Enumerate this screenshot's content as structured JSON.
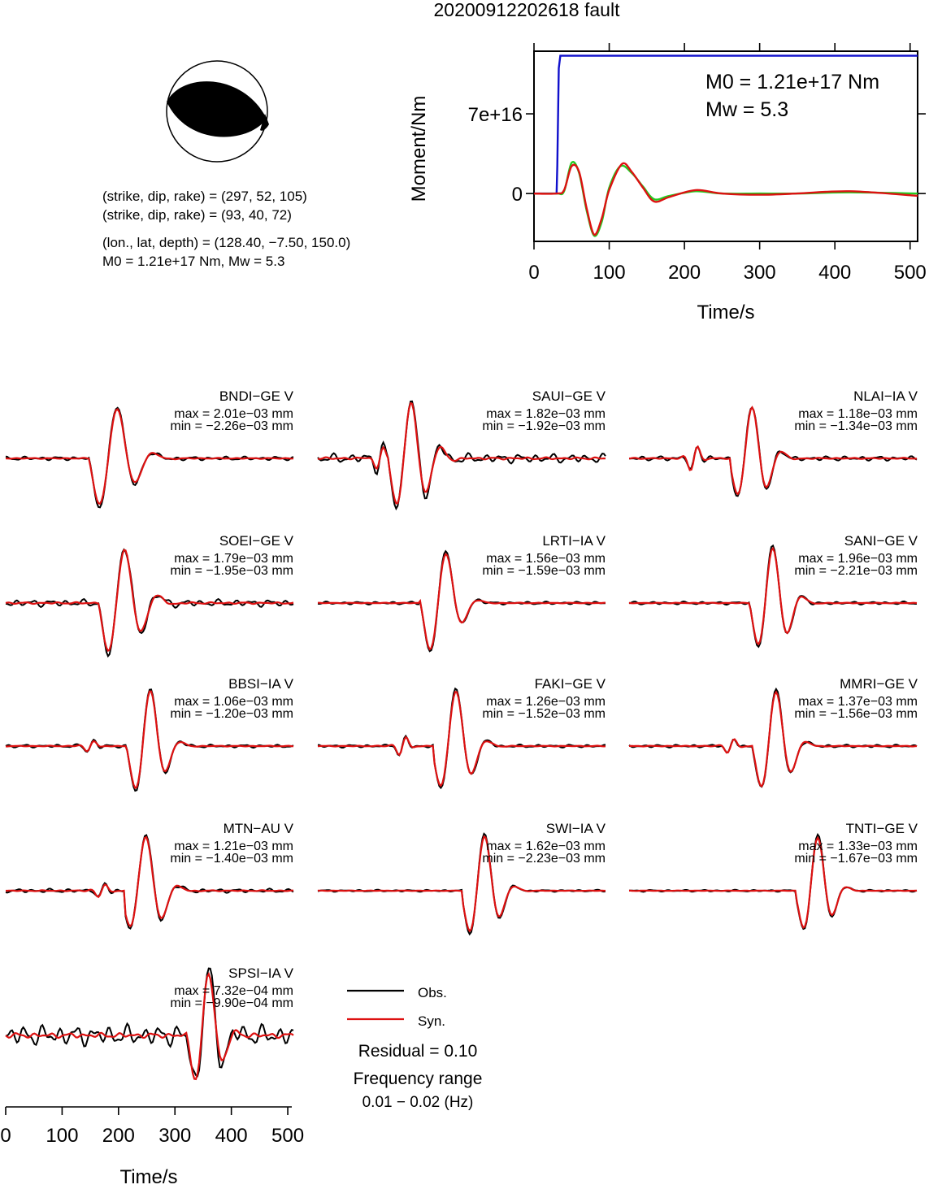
{
  "title": "20200912202618 fault",
  "mechanism": {
    "plane1": "(strike, dip, rake) = (297, 52, 105)",
    "plane2": "(strike, dip, rake) = (93, 40, 72)",
    "location": "(lon., lat, depth) = (128.40, −7.50, 150.0)",
    "moment_line": "M0 = 1.21e+17 Nm, Mw = 5.3"
  },
  "moment_plot": {
    "ylabel": "Moment/Nm",
    "xlabel": "Time/s",
    "m0_text": "M0 = 1.21e+17 Nm",
    "mw_text": "Mw = 5.3",
    "y_ticks": [
      "7e+16",
      "0"
    ],
    "x_ticks": [
      "0",
      "100",
      "200",
      "300",
      "400",
      "500"
    ]
  },
  "stations": [
    {
      "name": "BNDI−GE V",
      "max": "max = 2.01e−03 mm",
      "min": "min = −2.26e−03 mm"
    },
    {
      "name": "SAUI−GE V",
      "max": "max = 1.82e−03 mm",
      "min": "min = −1.92e−03 mm"
    },
    {
      "name": "NLAI−IA V",
      "max": "max = 1.18e−03 mm",
      "min": "min = −1.34e−03 mm"
    },
    {
      "name": "SOEI−GE V",
      "max": "max = 1.79e−03 mm",
      "min": "min = −1.95e−03 mm"
    },
    {
      "name": "LRTI−IA V",
      "max": "max = 1.56e−03 mm",
      "min": "min = −1.59e−03 mm"
    },
    {
      "name": "SANI−GE V",
      "max": "max = 1.96e−03 mm",
      "min": "min = −2.21e−03 mm"
    },
    {
      "name": "BBSI−IA V",
      "max": "max = 1.06e−03 mm",
      "min": "min = −1.20e−03 mm"
    },
    {
      "name": "FAKI−GE V",
      "max": "max = 1.26e−03 mm",
      "min": "min = −1.52e−03 mm"
    },
    {
      "name": "MMRI−GE V",
      "max": "max = 1.37e−03 mm",
      "min": "min = −1.56e−03 mm"
    },
    {
      "name": "MTN−AU V",
      "max": "max = 1.21e−03 mm",
      "min": "min = −1.40e−03 mm"
    },
    {
      "name": "SWI−IA V",
      "max": "max = 1.62e−03 mm",
      "min": "min = −2.23e−03 mm"
    },
    {
      "name": "TNTI−GE V",
      "max": "max = 1.33e−03 mm",
      "min": "min = −1.67e−03 mm"
    },
    {
      "name": "SPSI−IA V",
      "max": "max = 7.32e−04 mm",
      "min": "min = −9.90e−04 mm"
    }
  ],
  "legend": {
    "obs": "Obs.",
    "syn": "Syn.",
    "residual": "Residual = 0.10",
    "freq_title": "Frequency range",
    "freq_range": "0.01 − 0.02 (Hz)"
  },
  "bottom_axis": {
    "xlabel": "Time/s",
    "x_ticks": [
      "0",
      "100",
      "200",
      "300",
      "400",
      "500"
    ]
  },
  "colors": {
    "obs": "#000000",
    "syn": "#dd1111",
    "stf": "#1010cc",
    "stf2": "#22cc22"
  },
  "chart_data": [
    {
      "type": "line",
      "title": "",
      "xlabel": "Time/s",
      "ylabel": "Moment/Nm",
      "xlim": [
        0,
        510
      ],
      "ylim": [
        -4.2e+16,
        1.25e+17
      ],
      "series": [
        {
          "x": [
            0,
            30,
            31,
            33,
            35,
            510
          ],
          "values": [
            0,
            0,
            2.5e+16,
            1.1e+17,
            1.21e+17,
            1.21e+17
          ]
        },
        {
          "x": [
            0,
            30,
            40,
            50,
            60,
            70,
            80,
            90,
            100,
            115,
            130,
            145,
            160,
            180,
            215,
            250,
            300,
            350,
            420,
            510
          ],
          "values": [
            0,
            0,
            2000000000000000.0,
            2.7e+16,
            1.8e+16,
            -1.5e+16,
            -3.7e+16,
            -2.5e+16,
            5000000000000000.0,
            2.4e+16,
            1.8e+16,
            6000000000000000.0,
            -5000000000000000.0,
            -2000000000000000.0,
            2000000000000000.0,
            0,
            0,
            0,
            1000000000000000.0,
            0
          ]
        },
        {
          "x": [
            0,
            30,
            40,
            50,
            60,
            70,
            80,
            90,
            100,
            117,
            130,
            145,
            160,
            180,
            215,
            250,
            300,
            350,
            420,
            510
          ],
          "values": [
            0,
            0,
            3000000000000000.0,
            2.4e+16,
            1.9e+16,
            -1.3e+16,
            -3.6e+16,
            -2.2e+16,
            3000000000000000.0,
            2.6e+16,
            1.9e+16,
            5000000000000000.0,
            -7000000000000000.0,
            -3000000000000000.0,
            3000000000000000.0,
            0,
            -1000000000000000.0,
            0,
            2000000000000000.0,
            -2000000000000000.0
          ]
        }
      ]
    }
  ]
}
